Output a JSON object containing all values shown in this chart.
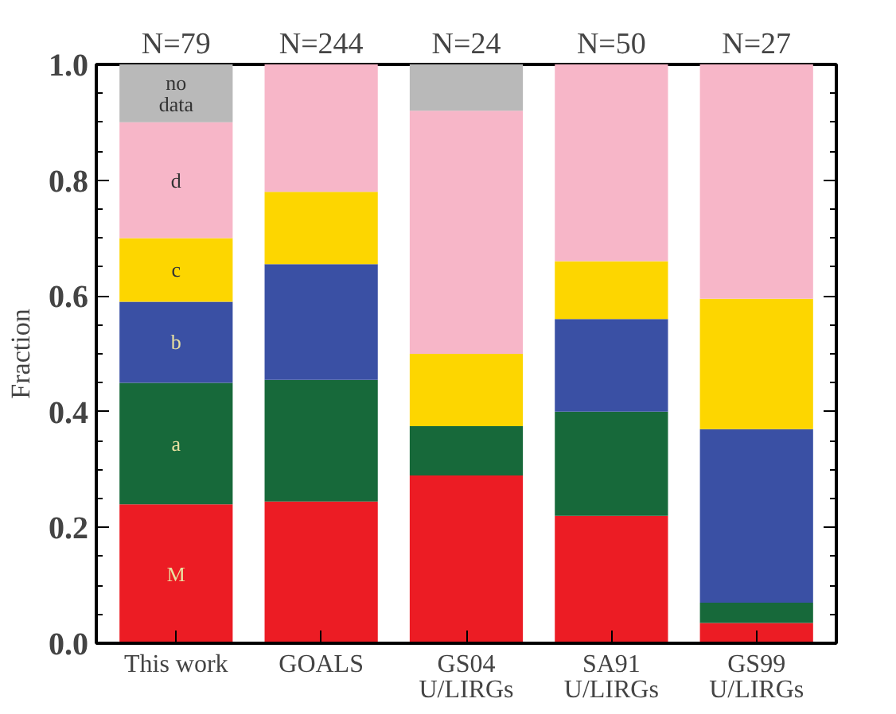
{
  "chart_data": {
    "type": "bar",
    "stacked": true,
    "ylabel": "Fraction",
    "categories": [
      "This work",
      "GOALS",
      "GS04\nU/LIRGs",
      "SA91\nU/LIRGs",
      "GS99\nU/LIRGs"
    ],
    "series": [
      {
        "name": "M",
        "color": "#ec1c24",
        "values": [
          0.24,
          0.245,
          0.29,
          0.22,
          0.035
        ]
      },
      {
        "name": "a",
        "color": "#17693a",
        "values": [
          0.21,
          0.21,
          0.085,
          0.18,
          0.035
        ]
      },
      {
        "name": "b",
        "color": "#3a50a4",
        "values": [
          0.14,
          0.2,
          0,
          0.16,
          0.3
        ]
      },
      {
        "name": "c",
        "color": "#fdd600",
        "values": [
          0.11,
          0.125,
          0.125,
          0.1,
          0.225
        ]
      },
      {
        "name": "d",
        "color": "#f7b6c8",
        "values": [
          0.2,
          0.22,
          0.42,
          0.34,
          0.405
        ]
      },
      {
        "name": "no data",
        "color": "#b9b9b9",
        "values": [
          0.1,
          0,
          0.08,
          0,
          0
        ]
      }
    ],
    "ylim": [
      0,
      1.0
    ],
    "yticks": [
      {
        "value": 0,
        "label": "0.0"
      },
      0.2,
      0.4,
      0.6,
      0.8,
      {
        "value": 1,
        "label": "1.0"
      }
    ],
    "annotations": [
      "N=79",
      "N=244",
      "N=24",
      "N=50",
      "N=27"
    ],
    "grid": false,
    "legend": false
  }
}
